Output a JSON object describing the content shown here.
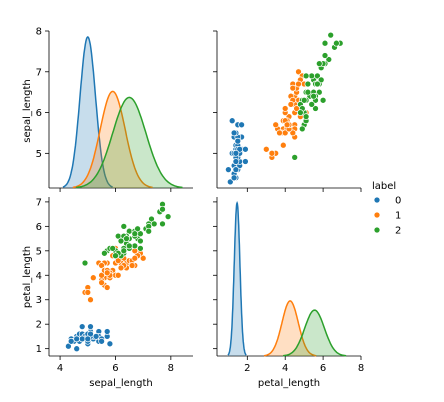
{
  "chart_data": {
    "type": "scatter",
    "variables": [
      "sepal_length",
      "petal_length"
    ],
    "axes": {
      "sepal_length": {
        "range": [
          3.6,
          8.8
        ],
        "ticks": [
          4,
          6,
          8
        ],
        "ticks_left": [
          5,
          6,
          7,
          8
        ],
        "diag_range": [
          4.15,
          8.0
        ]
      },
      "petal_length": {
        "range": [
          0.4,
          8.0
        ],
        "ticks": [
          2,
          4,
          6,
          8
        ],
        "ticks_left": [
          1,
          2,
          3,
          4,
          5,
          6,
          7
        ],
        "range_left": [
          0.7,
          7.2
        ]
      }
    },
    "diag_label": "sepal_length",
    "legend": {
      "title": "label",
      "entries": [
        {
          "name": "0",
          "color": "#1f77b4"
        },
        {
          "name": "1",
          "color": "#ff7f0e"
        },
        {
          "name": "2",
          "color": "#2ca02c"
        }
      ]
    },
    "kde": {
      "sepal_length": [
        {
          "label": "0",
          "mean": 5.0,
          "sd": 0.28,
          "peak": 1.0
        },
        {
          "label": "1",
          "mean": 5.9,
          "sd": 0.45,
          "peak": 0.64
        },
        {
          "label": "2",
          "mean": 6.5,
          "sd": 0.6,
          "peak": 0.6
        }
      ],
      "petal_length": [
        {
          "label": "0",
          "mean": 1.46,
          "sd": 0.15,
          "peak": 1.0
        },
        {
          "label": "1",
          "mean": 4.26,
          "sd": 0.43,
          "peak": 0.36
        },
        {
          "label": "2",
          "mean": 5.55,
          "sd": 0.52,
          "peak": 0.3
        }
      ]
    },
    "series": [
      {
        "name": "0",
        "points": [
          [
            5.1,
            1.4
          ],
          [
            4.9,
            1.4
          ],
          [
            4.7,
            1.3
          ],
          [
            4.6,
            1.5
          ],
          [
            5.0,
            1.4
          ],
          [
            5.4,
            1.7
          ],
          [
            4.6,
            1.4
          ],
          [
            5.0,
            1.5
          ],
          [
            4.4,
            1.4
          ],
          [
            4.9,
            1.5
          ],
          [
            5.4,
            1.5
          ],
          [
            4.8,
            1.6
          ],
          [
            4.8,
            1.4
          ],
          [
            4.3,
            1.1
          ],
          [
            5.8,
            1.2
          ],
          [
            5.7,
            1.5
          ],
          [
            5.4,
            1.3
          ],
          [
            5.1,
            1.4
          ],
          [
            5.7,
            1.7
          ],
          [
            5.1,
            1.5
          ],
          [
            5.4,
            1.7
          ],
          [
            5.1,
            1.5
          ],
          [
            4.6,
            1.0
          ],
          [
            5.1,
            1.7
          ],
          [
            4.8,
            1.9
          ],
          [
            5.0,
            1.6
          ],
          [
            5.0,
            1.6
          ],
          [
            5.2,
            1.5
          ],
          [
            5.2,
            1.4
          ],
          [
            4.7,
            1.6
          ],
          [
            4.8,
            1.6
          ],
          [
            5.4,
            1.5
          ],
          [
            5.2,
            1.5
          ],
          [
            5.5,
            1.4
          ],
          [
            4.9,
            1.5
          ],
          [
            5.0,
            1.2
          ],
          [
            5.5,
            1.3
          ],
          [
            4.9,
            1.4
          ],
          [
            4.4,
            1.3
          ],
          [
            5.1,
            1.5
          ],
          [
            5.0,
            1.3
          ],
          [
            4.5,
            1.3
          ],
          [
            4.4,
            1.3
          ],
          [
            5.0,
            1.6
          ],
          [
            5.1,
            1.9
          ],
          [
            4.8,
            1.4
          ],
          [
            5.1,
            1.6
          ],
          [
            4.6,
            1.4
          ],
          [
            5.3,
            1.5
          ],
          [
            5.0,
            1.4
          ]
        ]
      },
      {
        "name": "1",
        "points": [
          [
            7.0,
            4.7
          ],
          [
            6.4,
            4.5
          ],
          [
            6.9,
            4.9
          ],
          [
            5.5,
            4.0
          ],
          [
            6.5,
            4.6
          ],
          [
            5.7,
            4.5
          ],
          [
            6.3,
            4.7
          ],
          [
            4.9,
            3.3
          ],
          [
            6.6,
            4.6
          ],
          [
            5.2,
            3.9
          ],
          [
            5.0,
            3.5
          ],
          [
            5.9,
            4.2
          ],
          [
            6.0,
            4.0
          ],
          [
            6.1,
            4.7
          ],
          [
            5.6,
            3.6
          ],
          [
            6.7,
            4.4
          ],
          [
            5.6,
            4.5
          ],
          [
            5.8,
            4.1
          ],
          [
            6.2,
            4.5
          ],
          [
            5.6,
            3.9
          ],
          [
            5.9,
            4.8
          ],
          [
            6.1,
            4.0
          ],
          [
            6.3,
            4.9
          ],
          [
            6.1,
            4.7
          ],
          [
            6.4,
            4.3
          ],
          [
            6.6,
            4.4
          ],
          [
            6.8,
            4.8
          ],
          [
            6.7,
            5.0
          ],
          [
            6.0,
            4.5
          ],
          [
            5.7,
            3.5
          ],
          [
            5.5,
            3.8
          ],
          [
            5.5,
            3.7
          ],
          [
            5.8,
            3.9
          ],
          [
            6.0,
            5.1
          ],
          [
            5.4,
            4.5
          ],
          [
            6.0,
            4.5
          ],
          [
            6.7,
            4.7
          ],
          [
            6.3,
            4.4
          ],
          [
            5.6,
            4.1
          ],
          [
            5.5,
            4.0
          ],
          [
            5.5,
            4.4
          ],
          [
            6.1,
            4.6
          ],
          [
            5.8,
            4.0
          ],
          [
            5.0,
            3.3
          ],
          [
            5.6,
            4.2
          ],
          [
            5.7,
            4.2
          ],
          [
            5.7,
            4.2
          ],
          [
            6.2,
            4.3
          ],
          [
            5.1,
            3.0
          ],
          [
            5.7,
            4.1
          ]
        ]
      },
      {
        "name": "2",
        "points": [
          [
            6.3,
            6.0
          ],
          [
            5.8,
            5.1
          ],
          [
            7.1,
            5.9
          ],
          [
            6.3,
            5.6
          ],
          [
            6.5,
            5.8
          ],
          [
            7.6,
            6.6
          ],
          [
            4.9,
            4.5
          ],
          [
            7.3,
            6.3
          ],
          [
            6.7,
            5.8
          ],
          [
            7.2,
            6.1
          ],
          [
            6.5,
            5.1
          ],
          [
            6.4,
            5.3
          ],
          [
            6.8,
            5.5
          ],
          [
            5.7,
            5.0
          ],
          [
            5.8,
            5.1
          ],
          [
            6.4,
            5.3
          ],
          [
            6.5,
            5.5
          ],
          [
            7.7,
            6.7
          ],
          [
            7.7,
            6.9
          ],
          [
            6.0,
            5.0
          ],
          [
            6.9,
            5.7
          ],
          [
            5.6,
            4.9
          ],
          [
            7.7,
            6.7
          ],
          [
            6.3,
            4.9
          ],
          [
            6.7,
            5.7
          ],
          [
            7.2,
            6.0
          ],
          [
            6.2,
            4.8
          ],
          [
            6.1,
            4.9
          ],
          [
            6.4,
            5.6
          ],
          [
            7.2,
            5.8
          ],
          [
            7.4,
            6.1
          ],
          [
            7.9,
            6.4
          ],
          [
            6.4,
            5.6
          ],
          [
            6.3,
            5.1
          ],
          [
            6.1,
            5.6
          ],
          [
            7.7,
            6.1
          ],
          [
            6.3,
            5.6
          ],
          [
            6.4,
            5.5
          ],
          [
            6.0,
            4.8
          ],
          [
            6.9,
            5.4
          ],
          [
            6.7,
            5.6
          ],
          [
            6.9,
            5.1
          ],
          [
            5.8,
            5.1
          ],
          [
            6.8,
            5.9
          ],
          [
            6.7,
            5.7
          ],
          [
            6.7,
            5.2
          ],
          [
            6.3,
            5.0
          ],
          [
            6.5,
            5.2
          ],
          [
            6.2,
            5.4
          ],
          [
            5.9,
            5.1
          ]
        ]
      }
    ]
  }
}
